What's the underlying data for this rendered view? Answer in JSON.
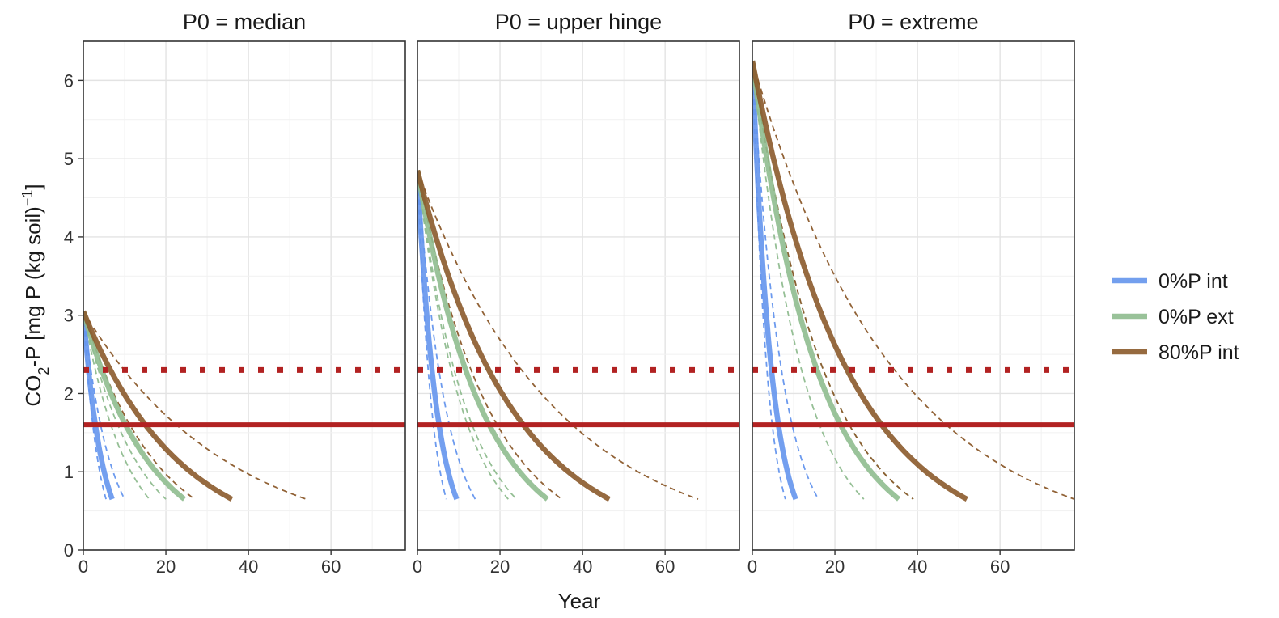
{
  "chart_data": {
    "type": "line",
    "xlabel": "Year",
    "ylabel_parts": {
      "main": "CO",
      "sub": "2",
      "rest": "-P [mg P (kg soil)",
      "sup": "−1",
      "close": "]"
    },
    "xlim": [
      0,
      78
    ],
    "ylim": [
      0,
      6.5
    ],
    "x_ticks": [
      0,
      20,
      40,
      60
    ],
    "y_ticks": [
      0,
      1,
      2,
      3,
      4,
      5,
      6
    ],
    "grid": true,
    "legend_position": "right",
    "legend": [
      {
        "label": "0%P int",
        "color": "#6495ED"
      },
      {
        "label": "0%P ext",
        "color": "#8FBC8F"
      },
      {
        "label": "80%P int",
        "color": "#8B5A2B"
      }
    ],
    "reference_lines": [
      {
        "y": 2.3,
        "style": "dotted",
        "color": "#B22222"
      },
      {
        "y": 1.6,
        "style": "solid",
        "color": "#B22222"
      }
    ],
    "panels": [
      {
        "title": "P0 = median",
        "start": 3.05,
        "series": [
          {
            "name": "0%P int",
            "end_x": 7,
            "dashed_end_x": [
              5.5,
              10
            ]
          },
          {
            "name": "0%P ext",
            "end_x": 24.5,
            "dashed_end_x": [
              16,
              20
            ]
          },
          {
            "name": "80%P int",
            "end_x": 36,
            "dashed_end_x": [
              27,
              54
            ]
          }
        ]
      },
      {
        "title": "P0 = upper hinge",
        "start": 4.85,
        "series": [
          {
            "name": "0%P int",
            "end_x": 9.5,
            "dashed_end_x": [
              7,
              14
            ]
          },
          {
            "name": "0%P ext",
            "end_x": 31.5,
            "dashed_end_x": [
              22,
              24
            ]
          },
          {
            "name": "80%P int",
            "end_x": 46.5,
            "dashed_end_x": [
              35,
              68
            ]
          }
        ]
      },
      {
        "title": "P0 = extreme",
        "start": 6.25,
        "series": [
          {
            "name": "0%P int",
            "end_x": 10.5,
            "dashed_end_x": [
              8,
              16
            ]
          },
          {
            "name": "0%P ext",
            "end_x": 35.5,
            "dashed_end_x": [
              27,
              39
            ]
          },
          {
            "name": "80%P int",
            "end_x": 52,
            "dashed_end_x": [
              39,
              78
            ]
          }
        ]
      }
    ],
    "end_value": 0.65
  }
}
